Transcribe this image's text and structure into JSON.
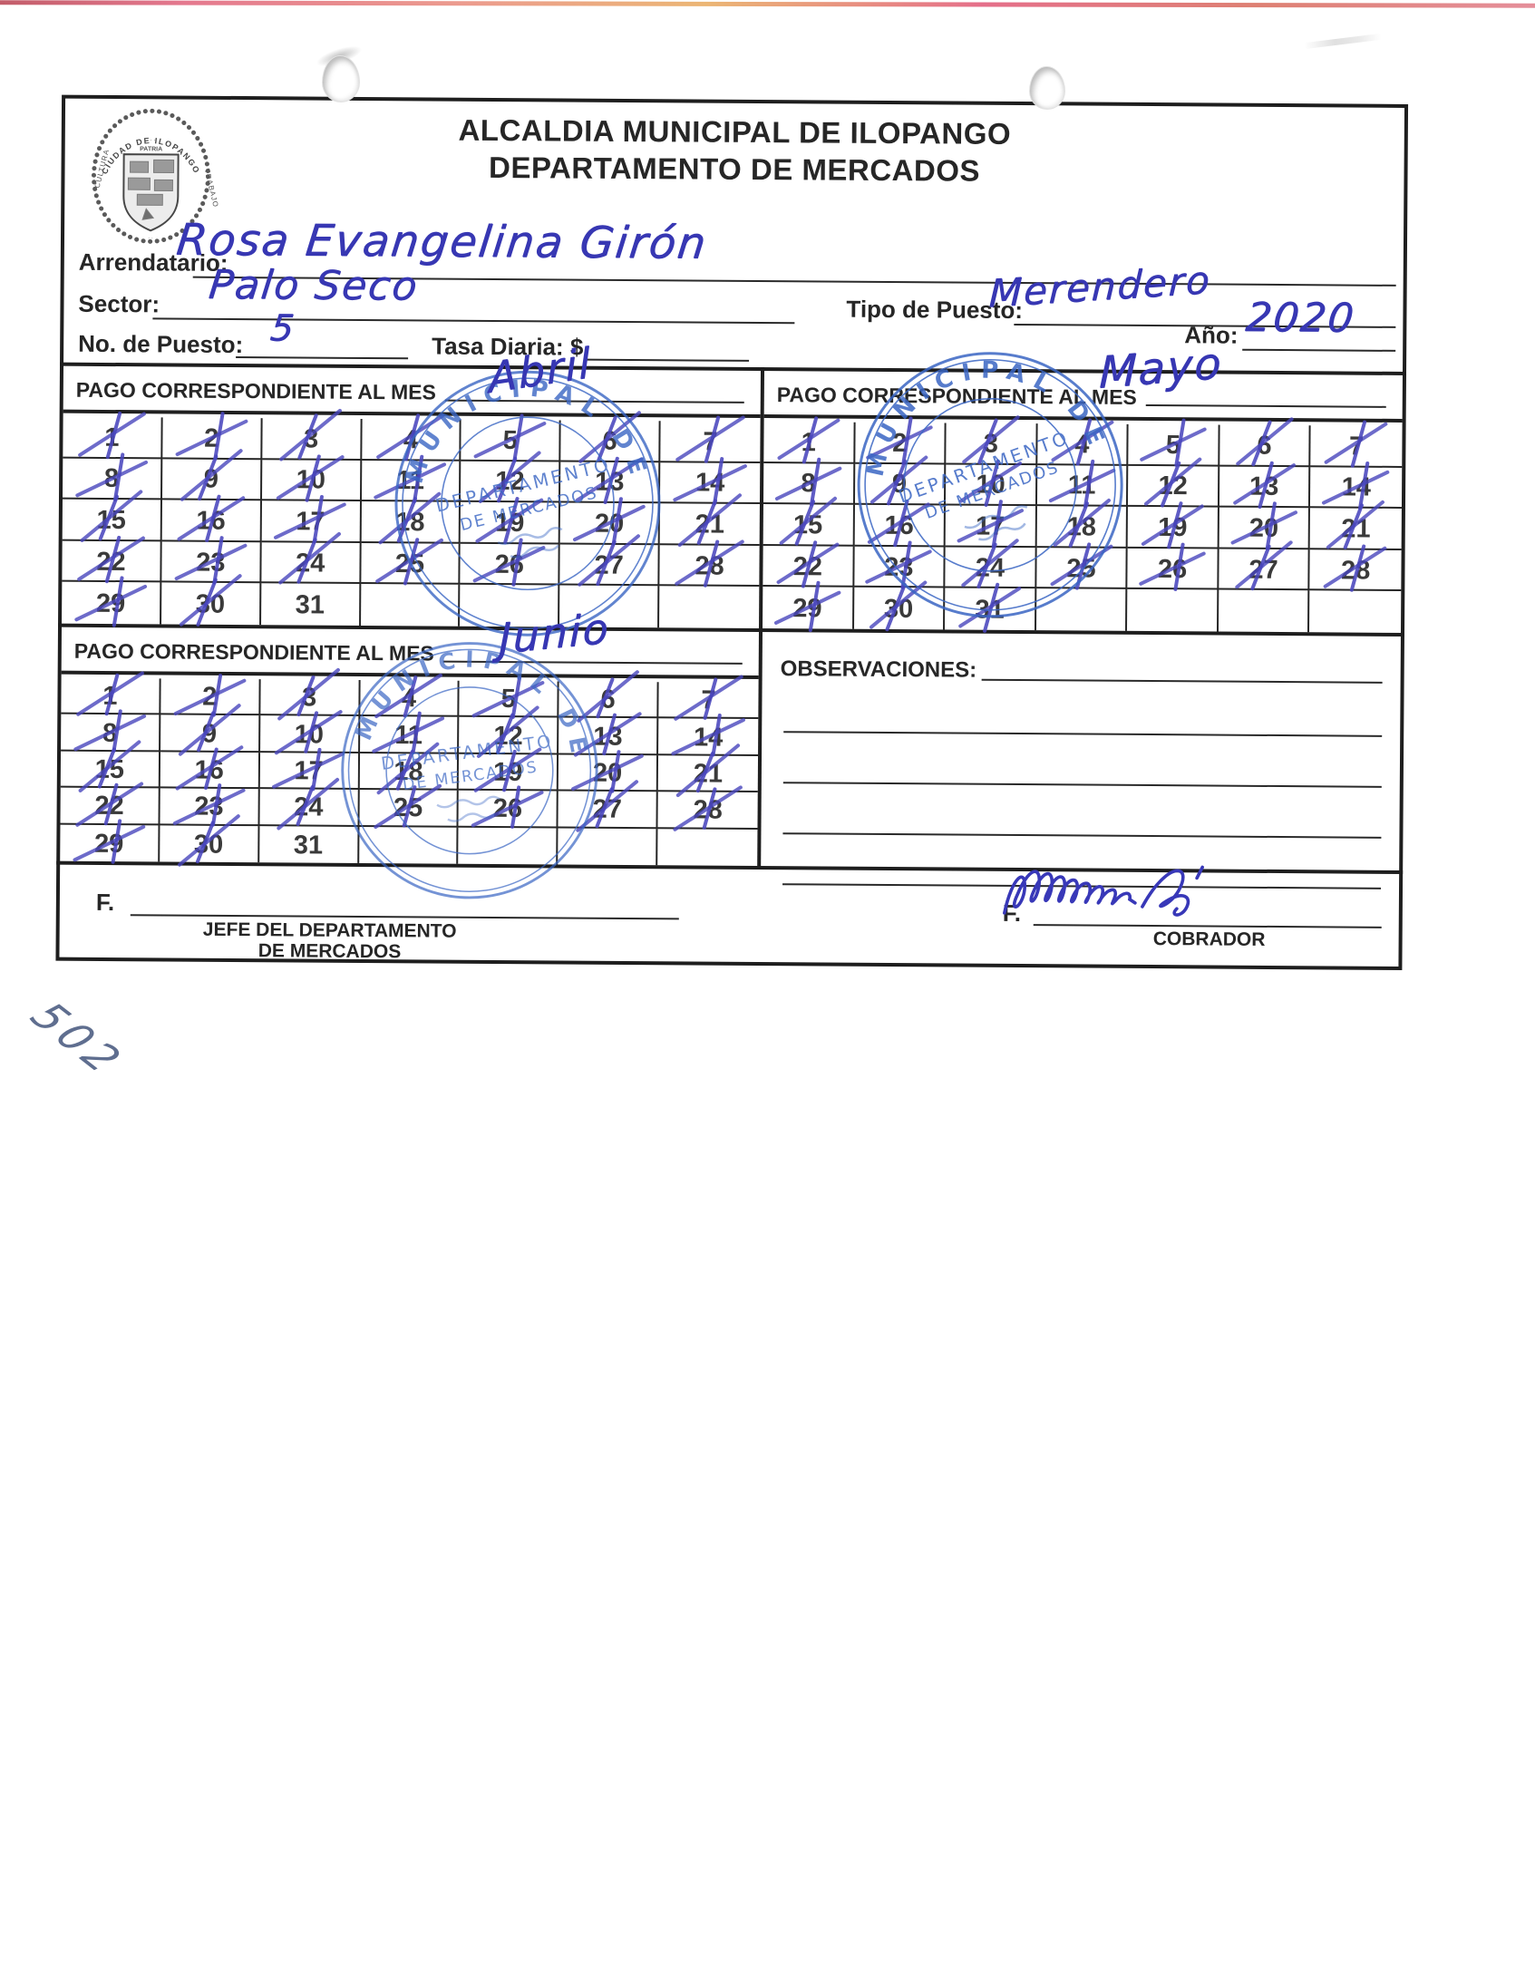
{
  "document": {
    "title_line1": "ALCALDIA MUNICIPAL DE ILOPANGO",
    "title_line2": "DEPARTAMENTO DE MERCADOS"
  },
  "logo": {
    "arc_text": "CIUDAD DE ILOPANGO",
    "left_text": "CULTURA",
    "right_text": "TRABAJO",
    "banner_text": "PATRIA"
  },
  "fields": {
    "arrendatario": {
      "label": "Arrendatario:",
      "value": "Rosa Evangelina Girón"
    },
    "sector": {
      "label": "Sector:",
      "value": "Palo Seco"
    },
    "tipo_puesto": {
      "label": "Tipo de Puesto:",
      "value": "Merendero"
    },
    "no_puesto": {
      "label": "No. de Puesto:",
      "value": "5"
    },
    "tasa_diaria": {
      "label": "Tasa Diaria: $",
      "value": ""
    },
    "anio": {
      "label": "Año:",
      "value": "2020"
    }
  },
  "calendars": [
    {
      "month_label": "PAGO CORRESPONDIENTE AL MES",
      "month_value": "Abril",
      "day_count": 31,
      "crossed_days": [
        1,
        2,
        3,
        4,
        5,
        6,
        7,
        8,
        9,
        10,
        11,
        12,
        13,
        14,
        15,
        16,
        17,
        18,
        19,
        20,
        21,
        22,
        23,
        24,
        25,
        26,
        27,
        28,
        29,
        30
      ]
    },
    {
      "month_label": "PAGO CORRESPONDIENTE AL MES",
      "month_value": "Mayo",
      "day_count": 31,
      "crossed_days": [
        1,
        2,
        3,
        4,
        5,
        6,
        7,
        8,
        9,
        10,
        11,
        12,
        13,
        14,
        15,
        16,
        17,
        18,
        19,
        20,
        21,
        22,
        23,
        24,
        25,
        26,
        27,
        28,
        29,
        30,
        31
      ]
    },
    {
      "month_label": "PAGO CORRESPONDIENTE AL MES",
      "month_value": "Junio",
      "day_count": 31,
      "crossed_days": [
        1,
        2,
        3,
        4,
        5,
        6,
        7,
        8,
        9,
        10,
        11,
        12,
        13,
        14,
        15,
        16,
        17,
        18,
        19,
        20,
        21,
        22,
        23,
        24,
        25,
        26,
        27,
        28,
        29,
        30
      ]
    }
  ],
  "observaciones": {
    "label": "OBSERVACIONES:",
    "blank_lines": 4
  },
  "signatures": {
    "jefe": {
      "prefix": "F.",
      "title_line1": "JEFE DEL DEPARTAMENTO",
      "title_line2": "DE MERCADOS",
      "signed": false
    },
    "cobrador": {
      "prefix": "F.",
      "title": "COBRADOR",
      "signed": true
    }
  },
  "stamp": {
    "arc_text": "MUNICIPAL DE",
    "line1": "DEPARTAMENTO",
    "line2": "DE MERCADOS"
  },
  "margin_note": "502",
  "colors": {
    "ink_blue": "#3737b3",
    "cross_blue": "#4946bd",
    "stamp_blue": "#3a66c4",
    "line_black": "#1e1e1e",
    "scan_edge_pink": "#e0607a",
    "margin_note_ink": "#5f6e8f"
  }
}
